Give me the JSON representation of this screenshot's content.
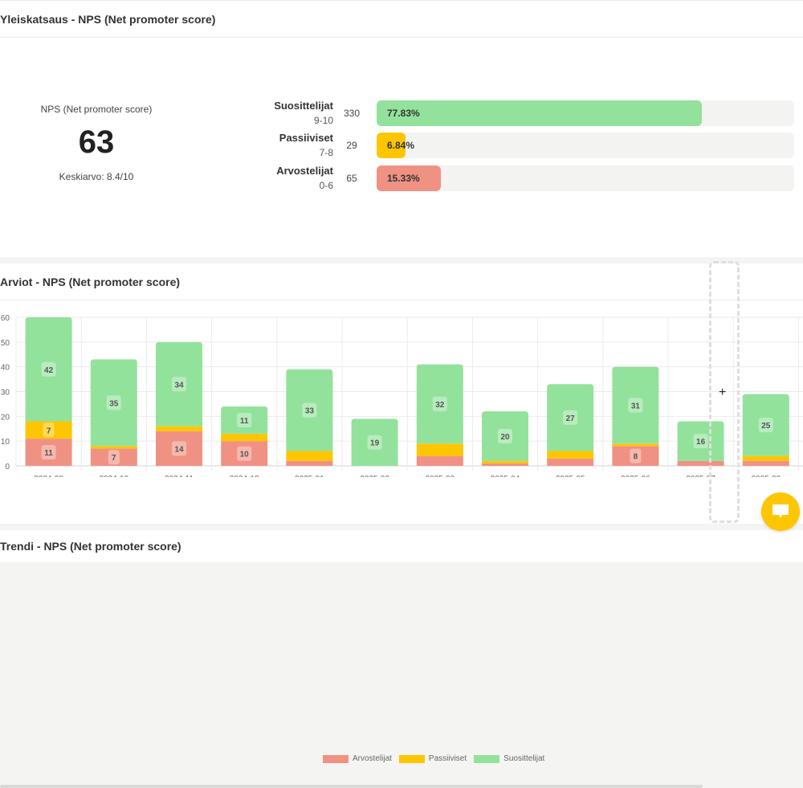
{
  "overview": {
    "title": "Yleiskatsaus - NPS (Net promoter score)",
    "nps_label": "NPS (Net promoter score)",
    "nps_value": "63",
    "average_text": "Keskiarvo: 8.4/10",
    "distribution": [
      {
        "name": "Suosittelijat",
        "range": "9-10",
        "count": "330",
        "percent_text": "77.83%",
        "percent": 77.83,
        "color": "#93e29b"
      },
      {
        "name": "Passiiviset",
        "range": "7-8",
        "count": "29",
        "percent_text": "6.84%",
        "percent": 6.84,
        "color": "#fdc600"
      },
      {
        "name": "Arvostelijat",
        "range": "0-6",
        "count": "65",
        "percent_text": "15.33%",
        "percent": 15.33,
        "color": "#f09283"
      }
    ]
  },
  "ratings": {
    "title": "Arviot - NPS (Net promoter score)"
  },
  "trend": {
    "title": "Trendi - NPS (Net promoter score)"
  },
  "chart_data": {
    "type": "bar",
    "stacked": true,
    "title": "Arviot - NPS (Net promoter score)",
    "xlabel": "",
    "ylabel": "",
    "categories": [
      "2024-09",
      "2024-10",
      "2024-11",
      "2024-12",
      "2025-01",
      "2025-02",
      "2025-03",
      "2025-04",
      "2025-05",
      "2025-06",
      "2025-07",
      "2025-08"
    ],
    "series": [
      {
        "name": "Arvostelijat",
        "color": "#f09283",
        "values": [
          11,
          7,
          14,
          10,
          2,
          0,
          4,
          1,
          3,
          8,
          2,
          2
        ]
      },
      {
        "name": "Passiiviset",
        "color": "#fdc600",
        "values": [
          7,
          1,
          2,
          3,
          4,
          0,
          5,
          1,
          3,
          1,
          0,
          2
        ]
      },
      {
        "name": "Suosittelijat",
        "color": "#93e29b",
        "values": [
          42,
          35,
          34,
          11,
          33,
          19,
          32,
          20,
          27,
          31,
          16,
          25
        ]
      }
    ],
    "data_labels_min": 7,
    "ylim": [
      0,
      60
    ],
    "yticks": [
      0,
      10,
      20,
      30,
      40,
      50,
      60
    ],
    "grid": true,
    "legend": "bottom-center"
  },
  "chat_button": {
    "icon": "chat-bubble-icon"
  }
}
